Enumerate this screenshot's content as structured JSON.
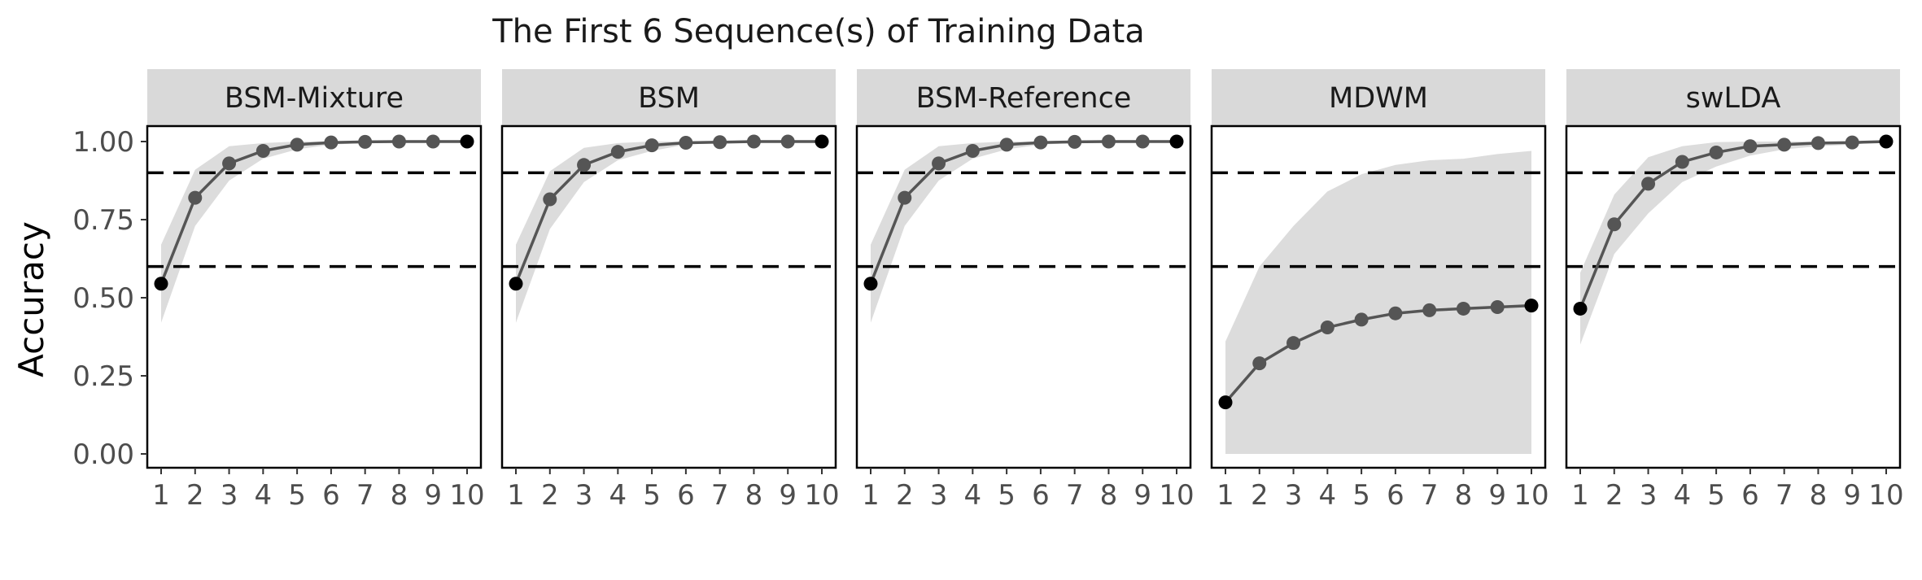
{
  "chart_data": {
    "type": "line",
    "title": "The First 6 Sequence(s) of Training Data",
    "ylabel": "Accuracy",
    "xlabel": "",
    "x": [
      1,
      2,
      3,
      4,
      5,
      6,
      7,
      8,
      9,
      10
    ],
    "x_tick_labels": [
      "1",
      "2",
      "3",
      "4",
      "5",
      "6",
      "7",
      "8",
      "9",
      "10"
    ],
    "ylim": [
      0,
      1
    ],
    "y_ticks": [
      0.0,
      0.25,
      0.5,
      0.75,
      1.0
    ],
    "y_tick_labels": [
      "0.00",
      "0.25",
      "0.50",
      "0.75",
      "1.00"
    ],
    "reference_lines": [
      0.6,
      0.9
    ],
    "grid": false,
    "colors": {
      "line": "#555555",
      "band": "#dcdcdc",
      "strip": "#d9d9d9",
      "first_last_point": "#000000"
    },
    "panels": [
      {
        "name": "BSM-Mixture",
        "values": [
          0.545,
          0.82,
          0.93,
          0.97,
          0.99,
          0.997,
          0.999,
          1.0,
          1.0,
          1.0
        ],
        "lower": [
          0.42,
          0.73,
          0.875,
          0.945,
          0.975,
          0.99,
          0.995,
          0.998,
          1.0,
          1.0
        ],
        "upper": [
          0.67,
          0.91,
          0.985,
          0.995,
          1.0,
          1.0,
          1.0,
          1.0,
          1.0,
          1.0
        ]
      },
      {
        "name": "BSM",
        "values": [
          0.545,
          0.815,
          0.925,
          0.967,
          0.988,
          0.996,
          0.998,
          1.0,
          1.0,
          1.0
        ],
        "lower": [
          0.42,
          0.72,
          0.87,
          0.94,
          0.97,
          0.99,
          0.995,
          0.998,
          1.0,
          1.0
        ],
        "upper": [
          0.67,
          0.905,
          0.98,
          0.995,
          1.0,
          1.0,
          1.0,
          1.0,
          1.0,
          1.0
        ]
      },
      {
        "name": "BSM-Reference",
        "values": [
          0.545,
          0.82,
          0.93,
          0.97,
          0.99,
          0.997,
          0.999,
          1.0,
          1.0,
          1.0
        ],
        "lower": [
          0.42,
          0.73,
          0.875,
          0.945,
          0.975,
          0.99,
          0.995,
          0.998,
          1.0,
          1.0
        ],
        "upper": [
          0.67,
          0.91,
          0.985,
          0.995,
          1.0,
          1.0,
          1.0,
          1.0,
          1.0,
          1.0
        ]
      },
      {
        "name": "MDWM",
        "values": [
          0.165,
          0.29,
          0.355,
          0.405,
          0.43,
          0.45,
          0.46,
          0.465,
          0.47,
          0.475
        ],
        "lower": [
          0.0,
          0.0,
          0.0,
          0.0,
          0.0,
          0.0,
          0.0,
          0.0,
          0.0,
          0.0
        ],
        "upper": [
          0.36,
          0.6,
          0.73,
          0.84,
          0.895,
          0.925,
          0.94,
          0.945,
          0.96,
          0.97
        ]
      },
      {
        "name": "swLDA",
        "values": [
          0.465,
          0.735,
          0.865,
          0.935,
          0.965,
          0.985,
          0.99,
          0.995,
          0.997,
          1.0
        ],
        "lower": [
          0.35,
          0.64,
          0.77,
          0.87,
          0.92,
          0.955,
          0.975,
          0.985,
          0.99,
          1.0
        ],
        "upper": [
          0.58,
          0.83,
          0.95,
          0.985,
          0.998,
          1.0,
          1.0,
          1.0,
          1.0,
          1.0
        ]
      }
    ]
  }
}
